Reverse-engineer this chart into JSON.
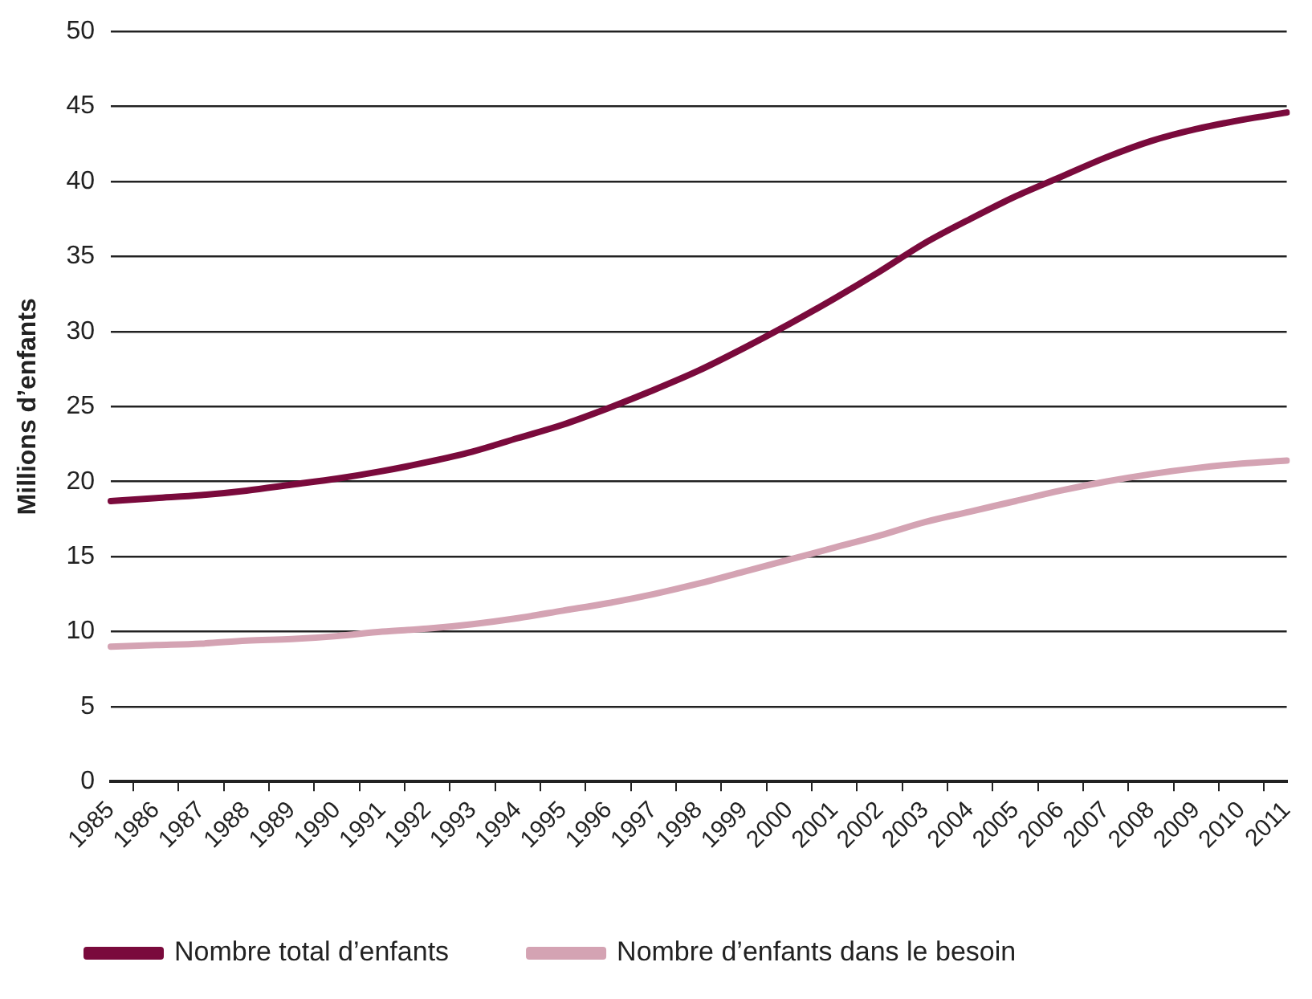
{
  "chart_data": {
    "type": "line",
    "ylabel": "Millions d’enfants",
    "categories": [
      "1985",
      "1986",
      "1987",
      "1988",
      "1989",
      "1990",
      "1991",
      "1992",
      "1993",
      "1994",
      "1995",
      "1996",
      "1997",
      "1998",
      "1999",
      "2000",
      "2001",
      "2002",
      "2003",
      "2004",
      "2005",
      "2006",
      "2007",
      "2008",
      "2009",
      "2010",
      "2011"
    ],
    "series": [
      {
        "name": "Nombre total d’enfants",
        "color": "#7a0a3c",
        "values": [
          18.7,
          18.9,
          19.1,
          19.4,
          19.8,
          20.2,
          20.7,
          21.3,
          22.0,
          22.9,
          23.8,
          24.9,
          26.1,
          27.4,
          28.9,
          30.5,
          32.2,
          34.0,
          35.9,
          37.5,
          39.0,
          40.3,
          41.6,
          42.7,
          43.5,
          44.1,
          44.6
        ]
      },
      {
        "name": "Nombre d’enfants dans le besoin",
        "color": "#d4a3b3",
        "values": [
          9.0,
          9.1,
          9.2,
          9.4,
          9.5,
          9.7,
          10.0,
          10.2,
          10.5,
          10.9,
          11.4,
          11.9,
          12.5,
          13.2,
          14.0,
          14.8,
          15.6,
          16.4,
          17.3,
          18.0,
          18.7,
          19.4,
          20.0,
          20.5,
          20.9,
          21.2,
          21.4
        ]
      }
    ],
    "ylim": [
      0,
      50
    ],
    "yticks": [
      0,
      5,
      10,
      15,
      20,
      25,
      30,
      35,
      40,
      45,
      50
    ],
    "grid": "y",
    "legend": "bottom",
    "marker": "none",
    "line_style": "solid"
  }
}
